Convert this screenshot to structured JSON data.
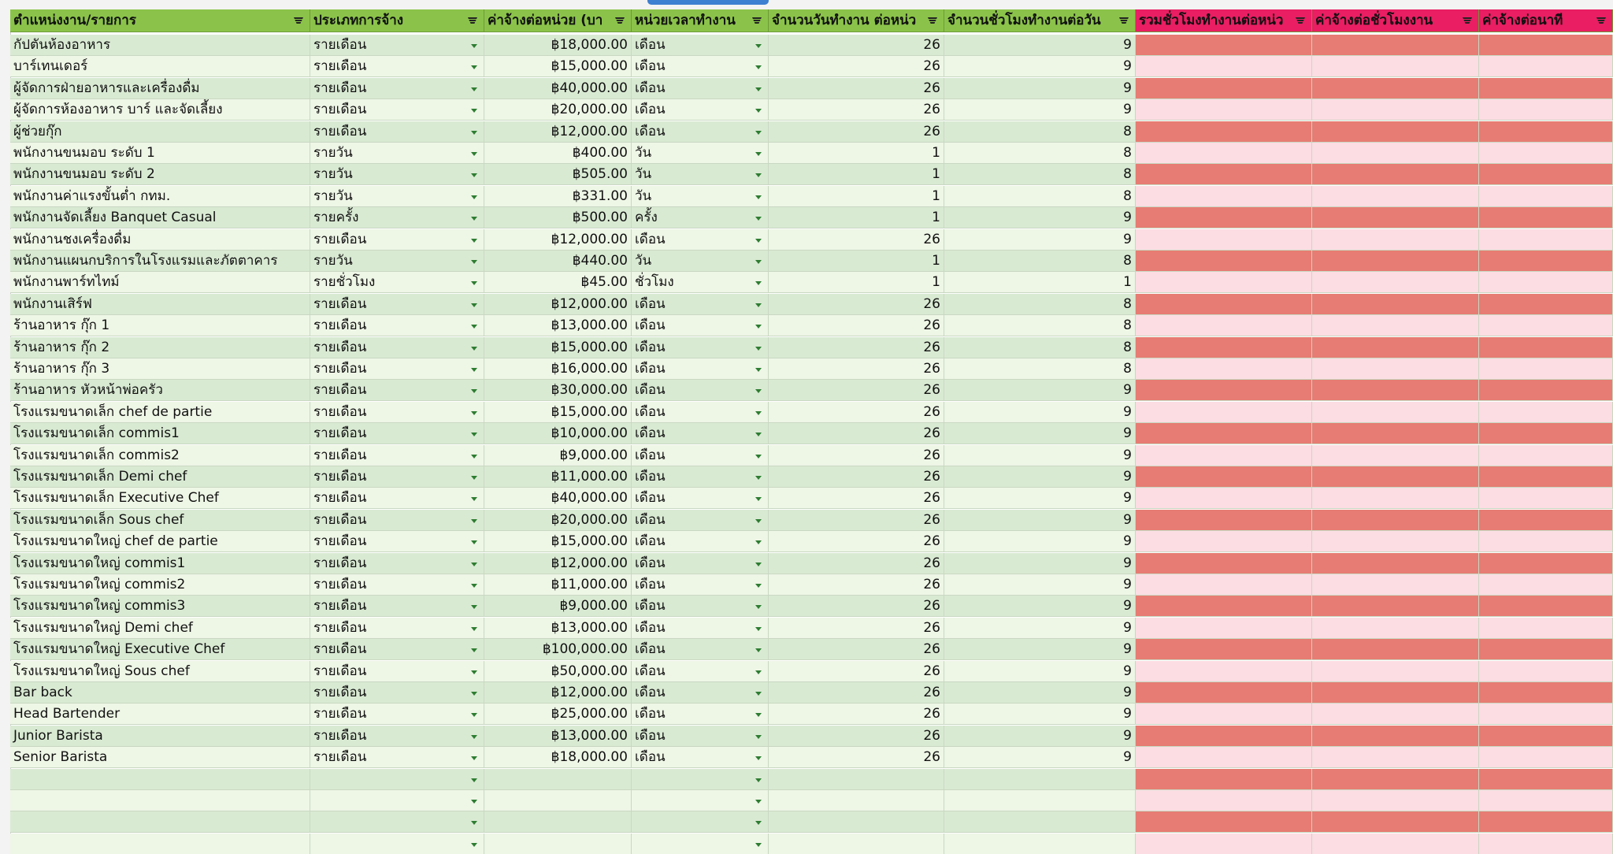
{
  "table": {
    "headers": [
      "ตำแหน่งงาน/รายการ",
      "ประเภทการจ้าง",
      "ค่าจ้างต่อหน่วย (บา",
      "หน่วยเวลาทำงาน",
      "จำนวนวันทำงาน ต่อหน่ว",
      "จำนวนชั่วโมงทำงานต่อวัน",
      "รวมชั่วโมงทำงานต่อหน่ว",
      "ค่าจ้างต่อชั่วโมงงาน",
      "ค่าจ้างต่อนาที"
    ],
    "rows": [
      [
        "กัปตันห้องอาหาร",
        "รายเดือน",
        "฿18,000.00",
        "เดือน",
        26,
        9
      ],
      [
        "บาร์เทนเดอร์",
        "รายเดือน",
        "฿15,000.00",
        "เดือน",
        26,
        9
      ],
      [
        "ผู้จัดการฝ่ายอาหารและเครื่องดื่ม",
        "รายเดือน",
        "฿40,000.00",
        "เดือน",
        26,
        9
      ],
      [
        "ผู้จัดการห้องอาหาร บาร์ และจัดเลี้ยง",
        "รายเดือน",
        "฿20,000.00",
        "เดือน",
        26,
        9
      ],
      [
        "ผู้ช่วยกุ๊ก",
        "รายเดือน",
        "฿12,000.00",
        "เดือน",
        26,
        8
      ],
      [
        "พนักงานขนมอบ ระดับ 1",
        "รายวัน",
        "฿400.00",
        "วัน",
        1,
        8
      ],
      [
        "พนักงานขนมอบ ระดับ 2",
        "รายวัน",
        "฿505.00",
        "วัน",
        1,
        8
      ],
      [
        "พนักงานค่าแรงขั้นต่ำ กทม.",
        "รายวัน",
        "฿331.00",
        "วัน",
        1,
        8
      ],
      [
        "พนักงานจัดเลี้ยง Banquet Casual",
        "รายครั้ง",
        "฿500.00",
        "ครั้ง",
        1,
        9
      ],
      [
        "พนักงานชงเครื่องดื่ม",
        "รายเดือน",
        "฿12,000.00",
        "เดือน",
        26,
        9
      ],
      [
        "พนักงานแผนกบริการในโรงแรมและภัตตาคาร",
        "รายวัน",
        "฿440.00",
        "วัน",
        1,
        8
      ],
      [
        "พนักงานพาร์ทไทม์",
        "รายชั่วโมง",
        "฿45.00",
        "ชั่วโมง",
        1,
        1
      ],
      [
        "พนักงานเสิร์ฟ",
        "รายเดือน",
        "฿12,000.00",
        "เดือน",
        26,
        8
      ],
      [
        "ร้านอาหาร กุ๊ก 1",
        "รายเดือน",
        "฿13,000.00",
        "เดือน",
        26,
        8
      ],
      [
        "ร้านอาหาร กุ๊ก 2",
        "รายเดือน",
        "฿15,000.00",
        "เดือน",
        26,
        8
      ],
      [
        "ร้านอาหาร กุ๊ก 3",
        "รายเดือน",
        "฿16,000.00",
        "เดือน",
        26,
        8
      ],
      [
        "ร้านอาหาร หัวหน้าพ่อครัว",
        "รายเดือน",
        "฿30,000.00",
        "เดือน",
        26,
        9
      ],
      [
        "โรงแรมขนาดเล็ก chef de partie",
        "รายเดือน",
        "฿15,000.00",
        "เดือน",
        26,
        9
      ],
      [
        "โรงแรมขนาดเล็ก commis1",
        "รายเดือน",
        "฿10,000.00",
        "เดือน",
        26,
        9
      ],
      [
        "โรงแรมขนาดเล็ก commis2",
        "รายเดือน",
        "฿9,000.00",
        "เดือน",
        26,
        9
      ],
      [
        "โรงแรมขนาดเล็ก Demi chef",
        "รายเดือน",
        "฿11,000.00",
        "เดือน",
        26,
        9
      ],
      [
        "โรงแรมขนาดเล็ก Executive Chef",
        "รายเดือน",
        "฿40,000.00",
        "เดือน",
        26,
        9
      ],
      [
        "โรงแรมขนาดเล็ก Sous chef",
        "รายเดือน",
        "฿20,000.00",
        "เดือน",
        26,
        9
      ],
      [
        "โรงแรมขนาดใหญ่ chef de partie",
        "รายเดือน",
        "฿15,000.00",
        "เดือน",
        26,
        9
      ],
      [
        "โรงแรมขนาดใหญ่ commis1",
        "รายเดือน",
        "฿12,000.00",
        "เดือน",
        26,
        9
      ],
      [
        "โรงแรมขนาดใหญ่ commis2",
        "รายเดือน",
        "฿11,000.00",
        "เดือน",
        26,
        9
      ],
      [
        "โรงแรมขนาดใหญ่ commis3",
        "รายเดือน",
        "฿9,000.00",
        "เดือน",
        26,
        9
      ],
      [
        "โรงแรมขนาดใหญ่ Demi chef",
        "รายเดือน",
        "฿13,000.00",
        "เดือน",
        26,
        9
      ],
      [
        "โรงแรมขนาดใหญ่ Executive Chef",
        "รายเดือน",
        "฿100,000.00",
        "เดือน",
        26,
        9
      ],
      [
        "โรงแรมขนาดใหญ่ Sous chef",
        "รายเดือน",
        "฿50,000.00",
        "เดือน",
        26,
        9
      ],
      [
        "Bar back",
        "รายเดือน",
        "฿12,000.00",
        "เดือน",
        26,
        9
      ],
      [
        "Head Bartender",
        "รายเดือน",
        "฿25,000.00",
        "เดือน",
        26,
        9
      ],
      [
        "Junior Barista",
        "รายเดือน",
        "฿13,000.00",
        "เดือน",
        26,
        9
      ],
      [
        "Senior Barista",
        "รายเดือน",
        "฿18,000.00",
        "เดือน",
        26,
        9
      ]
    ]
  }
}
